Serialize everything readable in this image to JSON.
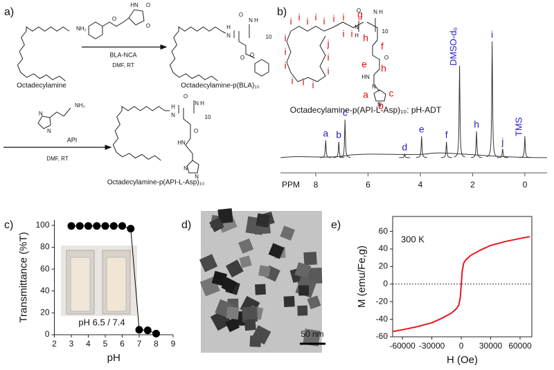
{
  "panel_labels": [
    "a)",
    "b)",
    "c)",
    "d)",
    "e)"
  ],
  "scheme": {
    "start_label": "Octadecylamine",
    "start_group": "NH₂",
    "reagent1": "BLA-NCA",
    "conditions1": "DMF, RT",
    "reagent1_atoms": [
      "HN",
      "O",
      "O",
      "O"
    ],
    "product1_label": "Octadecylamine-p(BLA)₁₀",
    "product1_atoms": [
      "N",
      "H",
      "O",
      "N",
      "H",
      "10",
      "O",
      "O"
    ],
    "reagent2": "API",
    "conditions2": "DMF, RT",
    "reagent2_atoms": [
      "N",
      "N",
      "NH₂"
    ],
    "product2_label": "Octadecylamine-p(API-L-Asp)₁₀",
    "product2_atoms": [
      "N",
      "H",
      "O",
      "N",
      "H",
      "10",
      "O",
      "HN",
      "N",
      "N"
    ]
  },
  "nmr_structure": {
    "caption": "Octadecylamine-p(API-L-Asp)₁₀: pH-ADT",
    "letters": [
      "i",
      "i",
      "i",
      "i",
      "i",
      "i",
      "i",
      "i",
      "i",
      "i",
      "i",
      "i",
      "i",
      "i",
      "i",
      "i",
      "j",
      "i",
      "g",
      "h",
      "f",
      "e",
      "h",
      "a",
      "c",
      "b"
    ],
    "atoms": [
      "N",
      "H",
      "O",
      "N",
      "H",
      "10",
      "O",
      "HN",
      "N",
      "N"
    ]
  },
  "tem": {
    "scale_bar": "50 nm"
  },
  "chart_data": [
    {
      "type": "spectrum",
      "x_label": "PPM",
      "xlim": [
        9.35,
        -0.85
      ],
      "xticks": [
        8,
        6,
        4,
        2,
        0
      ],
      "x": [
        7.62,
        7.12,
        6.88,
        4.6,
        3.95,
        3.0,
        2.5,
        1.85,
        1.25,
        0.85,
        0
      ],
      "values": [
        25,
        23,
        55,
        5,
        31,
        23,
        133,
        38,
        168,
        13,
        31
      ],
      "peak_labels": [
        "a",
        "b",
        "c",
        "d",
        "e",
        "f",
        "DMSO-d₆",
        "h",
        "i",
        "j",
        "TMS"
      ],
      "color": "#333333",
      "label_color": "#2222cc"
    },
    {
      "type": "line",
      "x_label": "pH",
      "y_label": "Transmittance (%T)",
      "x": [
        3,
        3.5,
        4,
        4.5,
        5,
        5.5,
        6,
        6.5,
        7,
        7.5,
        8
      ],
      "values": [
        99.5,
        99.5,
        99.5,
        99.5,
        99.5,
        99.5,
        99.5,
        97,
        4.5,
        4,
        1
      ],
      "xlim": [
        2,
        9
      ],
      "xticks": [
        2,
        3,
        4,
        5,
        6,
        7,
        8,
        9
      ],
      "ylim": [
        0,
        105
      ],
      "yticks": [
        0,
        20,
        40,
        60,
        80,
        100
      ],
      "color": "#000000",
      "markers": true,
      "inset_label": "pH 6.5 / 7.4",
      "frame": false
    },
    {
      "type": "line",
      "x_label": "H (Oe)",
      "y_label": "M (emu/Fe,g)",
      "annotation": "300 K",
      "x": [
        -70000,
        -60000,
        -45000,
        -30000,
        -20000,
        -10000,
        -5000,
        -2500,
        -1000,
        0,
        1000,
        2500,
        5000,
        10000,
        20000,
        30000,
        45000,
        60000,
        70000
      ],
      "values": [
        -54,
        -52,
        -48.5,
        -44,
        -39,
        -33,
        -28,
        -24,
        -15,
        0,
        15,
        24,
        28,
        33,
        39,
        44,
        48.5,
        52,
        54
      ],
      "xlim": [
        -70000,
        72000
      ],
      "xticks": [
        -60000,
        -30000,
        0,
        30000,
        60000
      ],
      "ylim": [
        -60,
        77
      ],
      "yticks": [
        -60,
        -40,
        -20,
        0,
        20,
        40,
        60
      ],
      "color": "#e8161b",
      "markers": false,
      "hline": 0,
      "frame": true
    }
  ]
}
